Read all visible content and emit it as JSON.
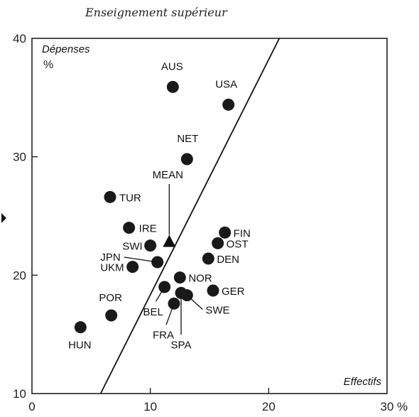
{
  "chart_data": {
    "type": "scatter",
    "title": "Enseignement supérieur",
    "ylabel": "Dépenses",
    "yunit": "%",
    "xlabel": "Effectifs",
    "xunit": "%",
    "xlim": [
      0,
      30
    ],
    "ylim": [
      10,
      40
    ],
    "x_ticks": [
      0,
      10,
      20,
      30
    ],
    "x_tick_labels": [
      "0",
      "10",
      "20",
      "30"
    ],
    "y_ticks": [
      10,
      20,
      30,
      40
    ],
    "y_tick_labels": [
      "10",
      "20",
      "30",
      "40"
    ],
    "grid": false,
    "points": [
      {
        "label": "AUS",
        "x": 11.9,
        "y": 35.9
      },
      {
        "label": "USA",
        "x": 16.6,
        "y": 34.4
      },
      {
        "label": "NET",
        "x": 13.1,
        "y": 29.8
      },
      {
        "label": "TUR",
        "x": 6.6,
        "y": 26.6
      },
      {
        "label": "IRE",
        "x": 8.2,
        "y": 24.0
      },
      {
        "label": "SWI",
        "x": 10.0,
        "y": 22.5
      },
      {
        "label": "JPN",
        "x": 10.6,
        "y": 21.1
      },
      {
        "label": "UKM",
        "x": 8.5,
        "y": 20.7
      },
      {
        "label": "FIN",
        "x": 16.3,
        "y": 23.6
      },
      {
        "label": "OST",
        "x": 15.7,
        "y": 22.7
      },
      {
        "label": "DEN",
        "x": 14.9,
        "y": 21.4
      },
      {
        "label": "NOR",
        "x": 12.5,
        "y": 19.8
      },
      {
        "label": "GER",
        "x": 15.3,
        "y": 18.7
      },
      {
        "label": "BEL",
        "x": 11.2,
        "y": 19.0
      },
      {
        "label": "SWE",
        "x": 13.1,
        "y": 18.3
      },
      {
        "label": "FRA",
        "x": 12.0,
        "y": 17.6
      },
      {
        "label": "SPA",
        "x": 12.6,
        "y": 18.5
      },
      {
        "label": "POR",
        "x": 6.7,
        "y": 16.6
      },
      {
        "label": "HUN",
        "x": 4.1,
        "y": 15.6
      }
    ],
    "mean": {
      "label": "MEAN",
      "x": 11.6,
      "y": 22.8
    },
    "trend_line": {
      "x1": 5.8,
      "y1": 10,
      "x2": 20.9,
      "y2": 40
    }
  }
}
